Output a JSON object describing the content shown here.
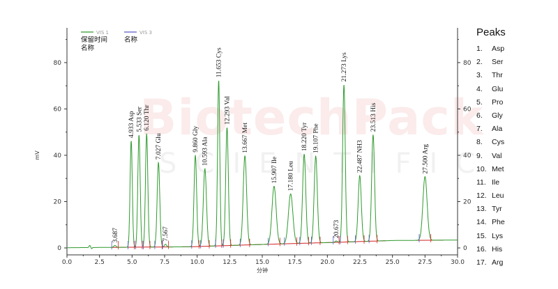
{
  "chart_data": {
    "type": "line",
    "legend": [
      {
        "name": "VIS 1",
        "color": "#2e9a2e"
      },
      {
        "name": "VIS 3",
        "color": "#5a5ac8"
      }
    ],
    "legend_sub": [
      {
        "line1": "保留时间",
        "line2": "名称"
      },
      {
        "line1": "名称",
        "line2": ""
      }
    ],
    "ylabel": "mV",
    "xlabel": "分钟",
    "xlim": [
      0,
      30
    ],
    "ylim": [
      -3,
      95
    ],
    "xticks": [
      "0.0",
      "2.5",
      "5.0",
      "7.5",
      "10.0",
      "12.5",
      "15.0",
      "17.5",
      "20.0",
      "22.5",
      "25.0",
      "27.5",
      "30.0"
    ],
    "xtick_values": [
      0,
      2.5,
      5,
      7.5,
      10,
      12.5,
      15,
      17.5,
      20,
      22.5,
      25,
      27.5,
      30
    ],
    "yticks": [
      0,
      20,
      40,
      60,
      80
    ],
    "baseline_points": [
      [
        0,
        0.1
      ],
      [
        9.5,
        0.5
      ],
      [
        15,
        1.5
      ],
      [
        20,
        2.3
      ],
      [
        25,
        3.2
      ],
      [
        30,
        3.4
      ]
    ],
    "peaks": [
      {
        "time": 3.687,
        "label": "3.687",
        "height": 0.8,
        "sigma": 0.09
      },
      {
        "time": 4.933,
        "label": "4.933  Asp",
        "height": 46,
        "sigma": 0.085
      },
      {
        "time": 5.533,
        "label": "5.533  Ser",
        "height": 48.5,
        "sigma": 0.09
      },
      {
        "time": 6.12,
        "label": "6.120  Thr",
        "height": 49,
        "sigma": 0.09
      },
      {
        "time": 7.027,
        "label": "7.027  Glu",
        "height": 36.5,
        "sigma": 0.1
      },
      {
        "time": 7.567,
        "label": "7.567",
        "height": 1.2,
        "sigma": 0.08
      },
      {
        "time": 9.86,
        "label": "9.860  Gly",
        "height": 39.5,
        "sigma": 0.1
      },
      {
        "time": 10.593,
        "label": "10.593  Ala",
        "height": 33.5,
        "sigma": 0.12
      },
      {
        "time": 11.653,
        "label": "11.653  Cys",
        "height": 71.5,
        "sigma": 0.085
      },
      {
        "time": 12.293,
        "label": "12.293  Val",
        "height": 51,
        "sigma": 0.1
      },
      {
        "time": 13.667,
        "label": "13.667  Met",
        "height": 38.5,
        "sigma": 0.13
      },
      {
        "time": 15.907,
        "label": "15.907  Ile",
        "height": 25,
        "sigma": 0.16
      },
      {
        "time": 17.18,
        "label": "17.180  Leu",
        "height": 21.5,
        "sigma": 0.17
      },
      {
        "time": 18.22,
        "label": "18.220  Tyr",
        "height": 38.5,
        "sigma": 0.12
      },
      {
        "time": 19.107,
        "label": "19.107  Phe",
        "height": 37.5,
        "sigma": 0.12
      },
      {
        "time": 20.673,
        "label": "20.673",
        "height": 0.6,
        "sigma": 0.08
      },
      {
        "time": 21.273,
        "label": "21.273  Lys",
        "height": 68,
        "sigma": 0.1
      },
      {
        "time": 22.487,
        "label": "22.487  NH3",
        "height": 28.5,
        "sigma": 0.12
      },
      {
        "time": 23.513,
        "label": "23.513  His",
        "height": 46,
        "sigma": 0.11
      },
      {
        "time": 27.5,
        "label": "27.500  Arg",
        "height": 27.5,
        "sigma": 0.16
      }
    ],
    "grid": false
  },
  "peaks_table": {
    "title": "Peaks",
    "items": [
      {
        "num": "1.",
        "name": "Asp"
      },
      {
        "num": "2.",
        "name": "Ser"
      },
      {
        "num": "3.",
        "name": "Thr"
      },
      {
        "num": "4.",
        "name": "Glu"
      },
      {
        "num": "5.",
        "name": "Pro"
      },
      {
        "num": "6.",
        "name": "Gly"
      },
      {
        "num": "7.",
        "name": "Ala"
      },
      {
        "num": "8.",
        "name": "Cys"
      },
      {
        "num": "9.",
        "name": "Val"
      },
      {
        "num": "10.",
        "name": "Met"
      },
      {
        "num": "11.",
        "name": "Ile"
      },
      {
        "num": "12.",
        "name": "Leu"
      },
      {
        "num": "13.",
        "name": "Tyr"
      },
      {
        "num": "14.",
        "name": "Phe"
      },
      {
        "num": "15.",
        "name": "Lys"
      },
      {
        "num": "16.",
        "name": "His"
      },
      {
        "num": "17.",
        "name": "Arg"
      }
    ]
  },
  "watermark": {
    "main": "BiotechPack",
    "sub": "SCIENTIFIC"
  },
  "colors": {
    "trace": "#2e9a2e",
    "baseline": "#d22020",
    "marker": "#5a5ac8",
    "axis": "#333333"
  }
}
